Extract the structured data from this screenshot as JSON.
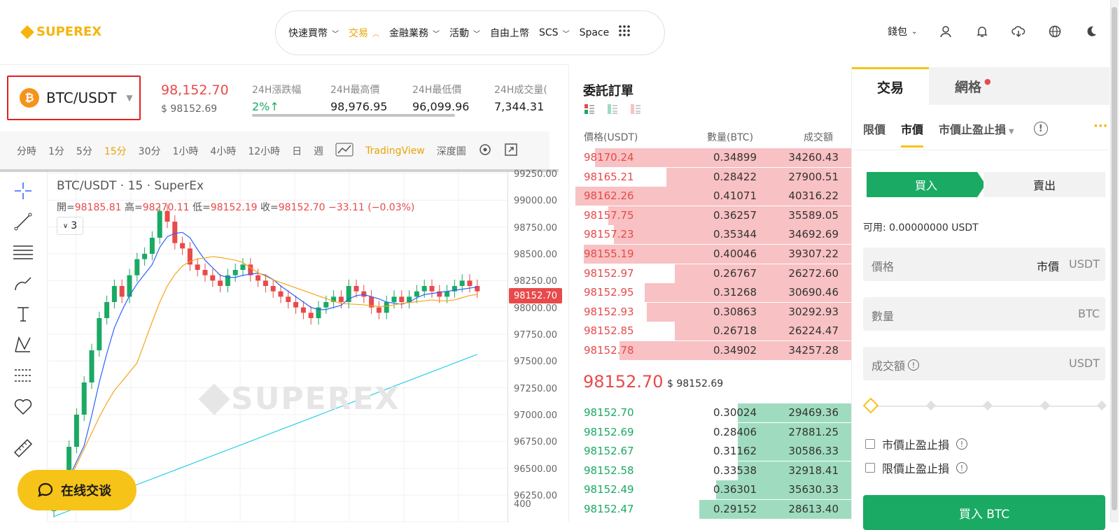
{
  "header": {
    "logo": "SUPEREX",
    "nav": [
      {
        "label": "快速買幣",
        "chevron": true,
        "active": false
      },
      {
        "label": "交易",
        "chevron": true,
        "active": true
      },
      {
        "label": "金融業務",
        "chevron": true,
        "active": false
      },
      {
        "label": "活動",
        "chevron": true,
        "active": false
      },
      {
        "label": "自由上幣",
        "chevron": false,
        "active": false
      },
      {
        "label": "SCS",
        "chevron": true,
        "active": false
      },
      {
        "label": "Space",
        "chevron": false,
        "active": false
      }
    ],
    "wallet": "錢包"
  },
  "ticker": {
    "pair": "BTC/USDT",
    "price": "98,152.70",
    "price_usd": "$ 98152.69",
    "stats": [
      {
        "label": "24H漲跌幅",
        "value": "2%↑"
      },
      {
        "label": "24H最高價",
        "value": "98,976.95"
      },
      {
        "label": "24H最低價",
        "value": "96,099.96"
      },
      {
        "label": "24H成交量(",
        "value": "7,344.31"
      }
    ]
  },
  "chart": {
    "tabs": [
      "分時",
      "1分",
      "5分",
      "15分",
      "30分",
      "1小時",
      "4小時",
      "12小時",
      "日",
      "週"
    ],
    "active_tab": "15分",
    "tradingview": "TradingView",
    "depth": "深度圖",
    "title": "BTC/USDT · 15 · SuperEx",
    "ohlc": {
      "open_lbl": "開=",
      "open": "98185.81",
      "high_lbl": "高=",
      "high": "98270.11",
      "low_lbl": "低=",
      "low": "98152.19",
      "close_lbl": "收=",
      "close": "98152.70",
      "change": "−33.11 (−0.03%)"
    },
    "collapse": "3",
    "watermark": "SUPEREX",
    "price_axis": [
      "99250.00",
      "99000.00",
      "98750.00",
      "98500.00",
      "98250.00",
      "98000.00",
      "97750.00",
      "97500.00",
      "97250.00",
      "97000.00",
      "96750.00",
      "96500.00",
      "96250.00",
      "400"
    ],
    "last_price_tag": "98152.70",
    "chat_label": "在线交谈"
  },
  "orderbook": {
    "title": "委託訂單",
    "headers": {
      "price": "價格(USDT)",
      "qty": "數量(BTC)",
      "total": "成交額"
    },
    "asks": [
      {
        "price": "98170.24",
        "qty": "0.34899",
        "total": "34260.43",
        "depth": 0.93
      },
      {
        "price": "98165.21",
        "qty": "0.28422",
        "total": "27900.51",
        "depth": 0.67
      },
      {
        "price": "98162.26",
        "qty": "0.41071",
        "total": "40316.22",
        "depth": 1.0
      },
      {
        "price": "98157.75",
        "qty": "0.36257",
        "total": "35589.05",
        "depth": 0.88
      },
      {
        "price": "98157.23",
        "qty": "0.35344",
        "total": "34692.69",
        "depth": 0.86
      },
      {
        "price": "98155.19",
        "qty": "0.40046",
        "total": "39307.22",
        "depth": 0.97
      },
      {
        "price": "98152.97",
        "qty": "0.26767",
        "total": "26272.60",
        "depth": 0.64
      },
      {
        "price": "98152.95",
        "qty": "0.31268",
        "total": "30690.46",
        "depth": 0.75
      },
      {
        "price": "98152.93",
        "qty": "0.30863",
        "total": "30292.93",
        "depth": 0.74
      },
      {
        "price": "98152.85",
        "qty": "0.26718",
        "total": "26224.47",
        "depth": 0.64
      },
      {
        "price": "98152.78",
        "qty": "0.34902",
        "total": "34257.28",
        "depth": 0.84
      }
    ],
    "mid_price": "98152.70",
    "mid_usd": "$ 98152.69",
    "bids": [
      {
        "price": "98152.70",
        "qty": "0.30024",
        "total": "29469.36",
        "depth": 0.41
      },
      {
        "price": "98152.69",
        "qty": "0.28406",
        "total": "27881.25",
        "depth": 0.41
      },
      {
        "price": "98152.67",
        "qty": "0.31162",
        "total": "30586.33",
        "depth": 0.41
      },
      {
        "price": "98152.58",
        "qty": "0.33538",
        "total": "32918.41",
        "depth": 0.41
      },
      {
        "price": "98152.49",
        "qty": "0.36301",
        "total": "35630.33",
        "depth": 0.49
      },
      {
        "price": "98152.47",
        "qty": "0.29152",
        "total": "28613.40",
        "depth": 0.55
      }
    ]
  },
  "trade": {
    "tab_trade": "交易",
    "tab_grid": "網格",
    "order_types": [
      "限價",
      "市價",
      "市價止盈止損"
    ],
    "active_type": "市價",
    "buy": "買入",
    "sell": "賣出",
    "available": "可用: 0.00000000 USDT",
    "price_label": "價格",
    "price_value": "市價",
    "price_unit": "USDT",
    "qty_label": "數量",
    "qty_unit": "BTC",
    "total_label": "成交額",
    "total_unit": "USDT",
    "slider_value": 0,
    "check1": "市價止盈止損",
    "check2": "限價止盈止損",
    "buy_button": "買入 BTC"
  },
  "colors": {
    "accent": "#f6c419",
    "up": "#1aaa63",
    "down": "#e84a4a",
    "ask_bg": "#f8c1c3",
    "bid_bg": "#9fdcbf"
  }
}
